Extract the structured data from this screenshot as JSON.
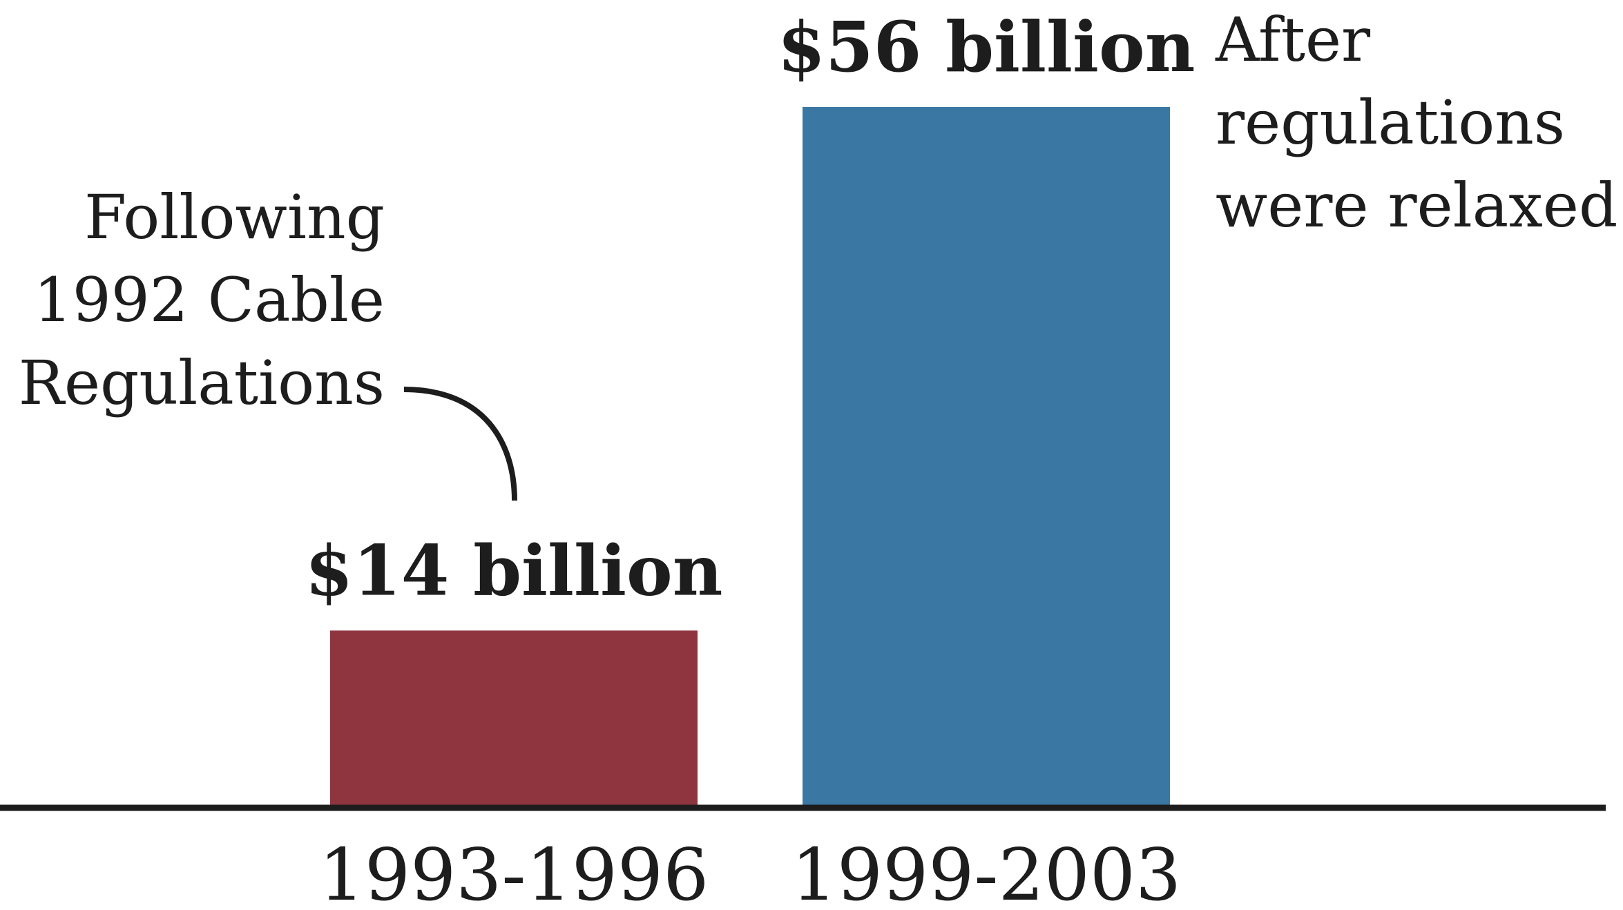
{
  "chart_data": {
    "type": "bar",
    "title": "",
    "xlabel": "",
    "ylabel": "",
    "ylim": [
      0,
      56
    ],
    "grid": false,
    "categories": [
      "1993-1996",
      "1999-2003"
    ],
    "values": [
      14,
      56
    ],
    "value_labels": [
      "$14 billion",
      "$56 billion"
    ],
    "colors": [
      "#8f3540",
      "#3a78a3"
    ],
    "annotations": [
      {
        "target": "1993-1996",
        "lines": [
          "Following",
          "1992 Cable",
          "Regulations"
        ]
      },
      {
        "target": "1999-2003",
        "lines": [
          "After",
          "regulations",
          "were relaxed"
        ]
      }
    ]
  }
}
